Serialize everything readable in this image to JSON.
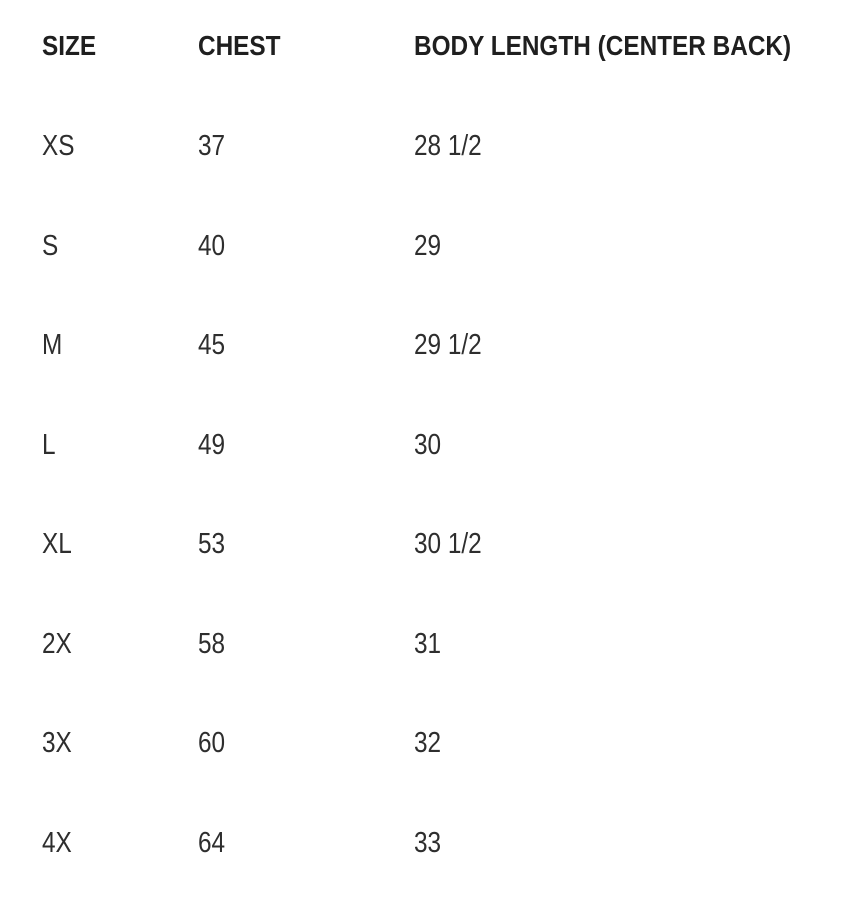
{
  "size_chart": {
    "columns": [
      {
        "key": "size",
        "label": "SIZE"
      },
      {
        "key": "chest",
        "label": "CHEST"
      },
      {
        "key": "body_length",
        "label": "BODY LENGTH (CENTER BACK)"
      }
    ],
    "rows": [
      {
        "size": "XS",
        "chest": "37",
        "body_length": "28 1/2"
      },
      {
        "size": "S",
        "chest": "40",
        "body_length": "29"
      },
      {
        "size": "M",
        "chest": "45",
        "body_length": "29 1/2"
      },
      {
        "size": "L",
        "chest": "49",
        "body_length": "30"
      },
      {
        "size": "XL",
        "chest": "53",
        "body_length": "30 1/2"
      },
      {
        "size": "2X",
        "chest": "58",
        "body_length": "31"
      },
      {
        "size": "3X",
        "chest": "60",
        "body_length": "32"
      },
      {
        "size": "4X",
        "chest": "64",
        "body_length": "33"
      }
    ]
  },
  "colors": {
    "background": "#ffffff",
    "header_text": "#1f1f1f",
    "body_text": "#2e2e2e"
  }
}
